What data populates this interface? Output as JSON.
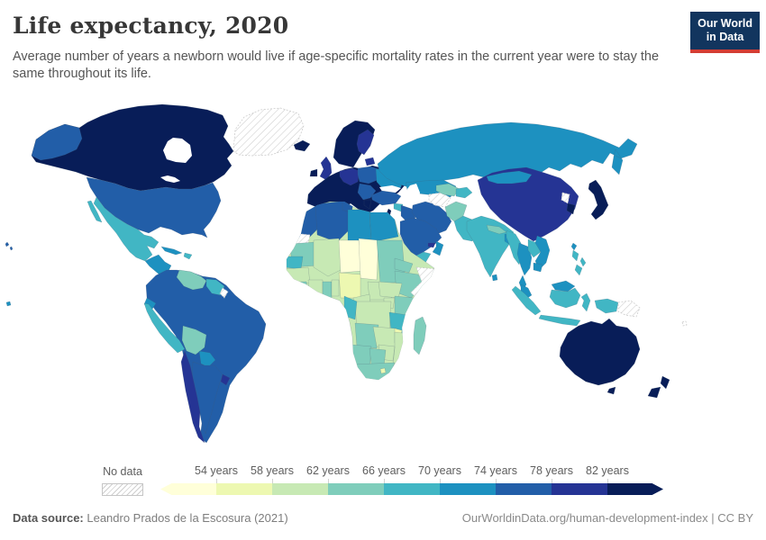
{
  "header": {
    "title": "Life expectancy, 2020",
    "subtitle": "Average number of years a newborn would live if age-specific mortality rates in the current year were to stay the same throughout its life.",
    "logo": {
      "line1": "Our World",
      "line2": "in Data",
      "bg": "#12355e",
      "accent": "#d43d33"
    }
  },
  "legend": {
    "no_data_label": "No data",
    "tick_labels": [
      "54 years",
      "58 years",
      "62 years",
      "66 years",
      "70 years",
      "74 years",
      "78 years",
      "82 years"
    ],
    "colors": [
      "#ffffd9",
      "#edf8b1",
      "#c7e9b4",
      "#7fcdbb",
      "#41b6c4",
      "#1d91c0",
      "#225ea8",
      "#253494",
      "#081d58"
    ]
  },
  "footer": {
    "source_label": "Data source:",
    "source_text": " Leandro Prados de la Escosura (2021)",
    "link_text": "OurWorldinData.org/human-development-index",
    "separator": " | ",
    "license_text": "CC BY"
  },
  "map": {
    "ocean": "#ffffff",
    "border": "rgba(70,90,110,0.35)",
    "no_data_pattern_color": "#cdcdcd",
    "bands": [
      {
        "range": "<54",
        "color": "#ffffd9"
      },
      {
        "range": "54-58",
        "color": "#edf8b1"
      },
      {
        "range": "58-62",
        "color": "#c7e9b4"
      },
      {
        "range": "62-66",
        "color": "#7fcdbb"
      },
      {
        "range": "66-70",
        "color": "#41b6c4"
      },
      {
        "range": "70-74",
        "color": "#1d91c0"
      },
      {
        "range": "74-78",
        "color": "#225ea8"
      },
      {
        "range": "78-82",
        "color": "#253494"
      },
      {
        "range": ">82",
        "color": "#081d58"
      }
    ],
    "regions": {
      "greenland": "no-data",
      "canada": "#081d58",
      "hudson-bay": "water",
      "great-lakes": "water",
      "alaska": "#225ea8",
      "usa": "#225ea8",
      "hawaii": "#225ea8",
      "mexico": "#41b6c4",
      "central-america": "#1d91c0",
      "panama": "#253494",
      "cuba": "#1d91c0",
      "hispaniola": "#41b6c4",
      "south-america": "#225ea8",
      "venezuela": "#7fcdbb",
      "guyanas": "#41b6c4",
      "french-guiana": "no-data",
      "ecuador": "#1d91c0",
      "peru": "#41b6c4",
      "bolivia": "#7fcdbb",
      "paraguay": "#1d91c0",
      "argentina": "#225ea8",
      "chile": "#253494",
      "uruguay": "#253494",
      "iceland": "#081d58",
      "scandinavia": "#081d58",
      "finland": "#253494",
      "baltics": "#253494",
      "uk": "#253494",
      "ireland": "#081d58",
      "western-europe": "#081d58",
      "germany-central": "#253494",
      "poland-east": "#225ea8",
      "ukraine-belarus": "#1d91c0",
      "balkans": "#225ea8",
      "greece": "#081d58",
      "russia": "#1d91c0",
      "caspian-sea": "water",
      "black-sea": "water",
      "kazakhstan": "#1d91c0",
      "turkey": "#225ea8",
      "syria": "#41b6c4",
      "israel": "#081d58",
      "iraq": "#225ea8",
      "iran": "#225ea8",
      "saudi-arabia": "#225ea8",
      "yemen": "#41b6c4",
      "oman": "#1d91c0",
      "uae": "#253494",
      "turkmenistan": "no-data",
      "uzbekistan": "#7fcdbb",
      "kyrgyzstan-tajikistan": "#41b6c4",
      "afghanistan": "#7fcdbb",
      "pakistan": "#41b6c4",
      "china": "#253494",
      "mongolia": "#1d91c0",
      "india": "#41b6c4",
      "nepal": "#7fcdbb",
      "bangladesh": "#1d91c0",
      "sri-lanka": "#1d91c0",
      "myanmar": "#41b6c4",
      "thailand": "#1d91c0",
      "laos": "#41b6c4",
      "vietnam": "#1d91c0",
      "cambodia": "#1d91c0",
      "malaysia": "#1d91c0",
      "borneo-malaysia": "#1d91c0",
      "indonesia-borneo": "#41b6c4",
      "sumatra": "#41b6c4",
      "java": "#41b6c4",
      "sulawesi": "#41b6c4",
      "west-papua": "#41b6c4",
      "papua-new-guinea": "no-data",
      "philippines": "#41b6c4",
      "taiwan": "#1d91c0",
      "north-korea": "no-data",
      "south-korea": "#081d58",
      "japan": "#081d58",
      "australia": "#081d58",
      "new-zealand": "#081d58",
      "fiji": "no-data",
      "french-polynesia": "#1d91c0",
      "africa-base": "#c7e9b4",
      "morocco": "#225ea8",
      "algeria": "#225ea8",
      "tunisia": "#225ea8",
      "libya": "#1d91c0",
      "egypt": "#1d91c0",
      "western-sahara": "no-data",
      "mauritania": "#7fcdbb",
      "mali": "#c7e9b4",
      "niger": "#ffffd9",
      "chad": "#ffffd9",
      "sudan": "#7fcdbb",
      "eritrea": "#7fcdbb",
      "ethiopia": "#7fcdbb",
      "somalia": "no-data",
      "senegal": "#41b6c4",
      "guinea": "#c7e9b4",
      "sierra-leone-liberia": "#7fcdbb",
      "cote-divoire": "#c7e9b4",
      "ghana": "#7fcdbb",
      "benin-togo": "#c7e9b4",
      "nigeria": "#edf8b1",
      "cameroon": "#c7e9b4",
      "central-african-republic": "#c7e9b4",
      "south-sudan": "#c7e9b4",
      "uganda": "#c7e9b4",
      "kenya": "#7fcdbb",
      "dr-congo": "#c7e9b4",
      "gabon-congo": "#41b6c4",
      "tanzania": "#41b6c4",
      "angola": "#7fcdbb",
      "zambia": "#c7e9b4",
      "malawi": "#edf8b1",
      "mozambique": "#c7e9b4",
      "zimbabwe": "#c7e9b4",
      "namibia": "#7fcdbb",
      "botswana": "#7fcdbb",
      "south-africa": "#7fcdbb",
      "lesotho": "#edf8b1",
      "madagascar": "#7fcdbb"
    }
  }
}
